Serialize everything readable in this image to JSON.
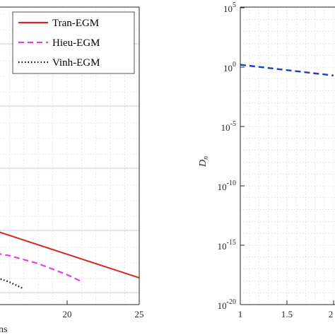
{
  "chart_data": [
    {
      "type": "line",
      "title": "",
      "xlabel": "ns",
      "ylabel": "",
      "xlim": [
        10,
        25
      ],
      "x_ticks": [
        20,
        25
      ],
      "grid": true,
      "legend_position": "top-right",
      "series": [
        {
          "name": "Tran-EGM",
          "color": "#d62728",
          "style": "solid",
          "x": [
            10,
            25
          ],
          "y": [
            0.0,
            -23.0
          ]
        },
        {
          "name": "Hieu-EGM",
          "color": "#e040e0",
          "style": "dashed",
          "x": [
            10,
            12,
            14,
            16,
            18,
            20,
            21
          ],
          "y": [
            -12.8,
            -13.2,
            -14.2,
            -15.8,
            -18.4,
            -22.0,
            -24.2
          ]
        },
        {
          "name": "Vinh-EGM",
          "color": "#000000",
          "style": "dotted",
          "x": [
            10,
            12,
            14,
            16,
            17
          ],
          "y": [
            -18.3,
            -19.2,
            -21.2,
            -24.4,
            -26.6
          ]
        }
      ]
    },
    {
      "type": "line",
      "title": "",
      "xlabel": "",
      "ylabel": "D_n",
      "xlim": [
        1,
        2
      ],
      "ylim": [
        -20,
        5
      ],
      "y_scale": "log",
      "x_ticks": [
        "1",
        "1.5",
        "2"
      ],
      "y_ticks": [
        "10^5",
        "10^0",
        "10^-5",
        "10^-10",
        "10^-15",
        "10^-20"
      ],
      "grid": true,
      "series": [
        {
          "color": "#1f3fbf",
          "style": "dashed",
          "x": [
            1,
            2
          ],
          "y": [
            0.2,
            -0.7
          ]
        }
      ]
    }
  ]
}
